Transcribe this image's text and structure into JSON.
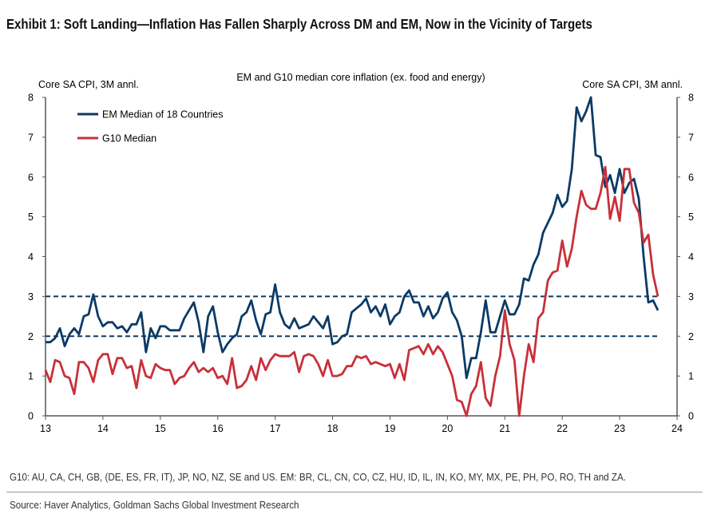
{
  "title": "Exhibit 1: Soft Landing—Inflation Has Fallen Sharply Across DM and EM, Now in the Vicinity of Targets",
  "footnote": "G10: AU, CA, CH, GB, (DE, ES, FR, IT), JP, NO, NZ, SE and US. EM: BR, CL, CN, CO, CZ, HU, ID, IL, IN, KO, MY, MX, PE, PH, PO, RO, TH and ZA.",
  "source": "Source: Haver Analytics, Goldman Sachs Global Investment Research",
  "chart_data": {
    "type": "line",
    "title": "EM and G10 median core inflation (ex. food and energy)",
    "ylabel_left": "Core SA CPI, 3M annl.",
    "ylabel_right": "Core SA CPI, 3M annl.",
    "xlim": [
      13,
      24
    ],
    "ylim": [
      0,
      8
    ],
    "x_ticks": [
      "13",
      "14",
      "15",
      "16",
      "17",
      "18",
      "19",
      "20",
      "21",
      "22",
      "23",
      "24"
    ],
    "y_ticks": [
      "0",
      "1",
      "2",
      "3",
      "4",
      "5",
      "6",
      "7",
      "8"
    ],
    "reference_lines": [
      2,
      3
    ],
    "legend_position": "top-left",
    "series": [
      {
        "name": "EM Median of 18 Countries",
        "color": "#0b3a66",
        "values": [
          1.85,
          1.85,
          1.95,
          2.2,
          1.75,
          2.05,
          2.2,
          2.05,
          2.5,
          2.55,
          3.05,
          2.5,
          2.25,
          2.35,
          2.35,
          2.2,
          2.25,
          2.1,
          2.3,
          2.3,
          2.6,
          1.6,
          2.2,
          1.95,
          2.25,
          2.25,
          2.15,
          2.15,
          2.15,
          2.45,
          2.65,
          2.85,
          2.35,
          1.6,
          2.5,
          2.75,
          2.1,
          1.6,
          1.8,
          1.95,
          2.05,
          2.5,
          2.6,
          2.9,
          2.4,
          2.05,
          2.55,
          2.6,
          3.3,
          2.6,
          2.3,
          2.2,
          2.45,
          2.2,
          2.25,
          2.3,
          2.5,
          2.35,
          2.2,
          2.5,
          1.8,
          1.85,
          2.0,
          2.05,
          2.6,
          2.7,
          2.8,
          2.95,
          2.6,
          2.75,
          2.5,
          2.8,
          2.3,
          2.5,
          2.6,
          3.0,
          3.15,
          2.85,
          2.85,
          2.5,
          2.75,
          2.45,
          2.6,
          2.95,
          3.1,
          2.6,
          2.4,
          2.0,
          0.95,
          1.45,
          1.45,
          2.1,
          2.9,
          2.1,
          2.1,
          2.5,
          2.9,
          2.55,
          2.55,
          2.8,
          3.45,
          3.4,
          3.8,
          4.05,
          4.6,
          4.85,
          5.1,
          5.55,
          5.25,
          5.4,
          6.2,
          7.75,
          7.4,
          7.65,
          8.0,
          6.55,
          6.5,
          5.75,
          6.05,
          5.6,
          6.2,
          5.6,
          5.85,
          5.95,
          5.45,
          4.0,
          2.85,
          2.9,
          2.65
        ]
      },
      {
        "name": "G10 Median",
        "color": "#c8303a",
        "values": [
          1.15,
          0.85,
          1.4,
          1.35,
          1.0,
          0.95,
          0.55,
          1.35,
          1.35,
          1.2,
          0.85,
          1.4,
          1.55,
          1.55,
          1.05,
          1.45,
          1.45,
          1.2,
          1.25,
          0.7,
          1.4,
          1.0,
          0.95,
          1.3,
          1.2,
          1.15,
          1.15,
          0.8,
          0.95,
          1.0,
          1.2,
          1.35,
          1.1,
          1.2,
          1.1,
          1.2,
          0.95,
          1.0,
          0.8,
          1.45,
          0.7,
          0.75,
          0.9,
          1.25,
          0.9,
          1.45,
          1.15,
          1.4,
          1.55,
          1.5,
          1.5,
          1.5,
          1.6,
          1.1,
          1.5,
          1.55,
          1.5,
          1.3,
          1.0,
          1.4,
          1.0,
          1.0,
          1.05,
          1.25,
          1.25,
          1.5,
          1.45,
          1.5,
          1.3,
          1.35,
          1.3,
          1.25,
          1.3,
          0.95,
          1.3,
          0.9,
          1.65,
          1.7,
          1.75,
          1.55,
          1.8,
          1.55,
          1.75,
          1.6,
          1.3,
          1.0,
          0.4,
          0.35,
          0.0,
          0.55,
          0.75,
          1.35,
          0.45,
          0.25,
          1.0,
          1.5,
          2.65,
          1.8,
          1.4,
          0.0,
          1.0,
          1.8,
          1.35,
          2.45,
          2.6,
          3.4,
          3.6,
          3.65,
          4.4,
          3.75,
          4.2,
          5.0,
          5.65,
          5.3,
          5.2,
          5.2,
          5.6,
          6.25,
          4.95,
          5.5,
          4.9,
          6.2,
          6.2,
          5.35,
          5.1,
          4.35,
          4.55,
          3.55,
          3.0
        ]
      }
    ]
  }
}
